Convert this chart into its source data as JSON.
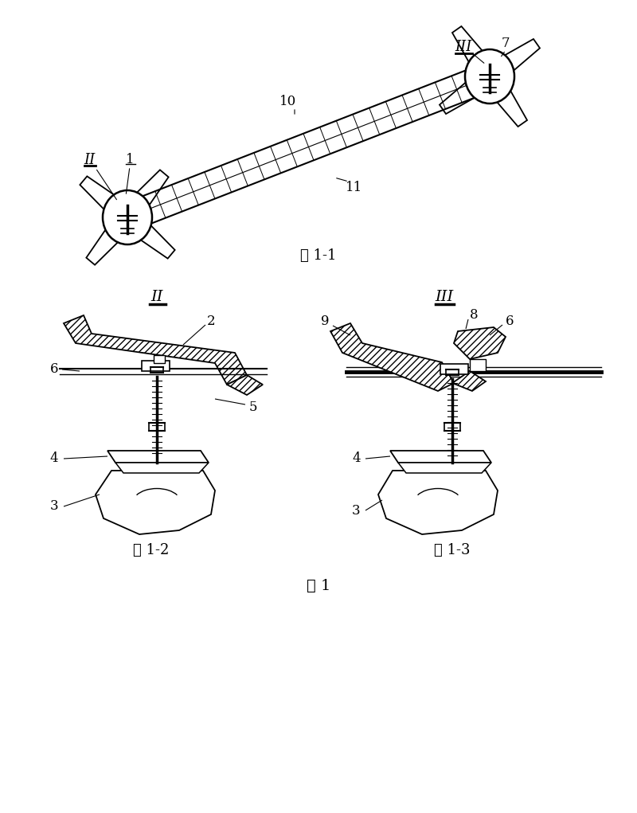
{
  "bg_color": "#ffffff",
  "line_color": "#000000",
  "fig_width": 8.0,
  "fig_height": 10.21,
  "caption_fig1_1": "图 1-1",
  "caption_fig1_2": "图 1-2",
  "caption_fig1_3": "图 1-3",
  "caption_fig1": "图 1"
}
